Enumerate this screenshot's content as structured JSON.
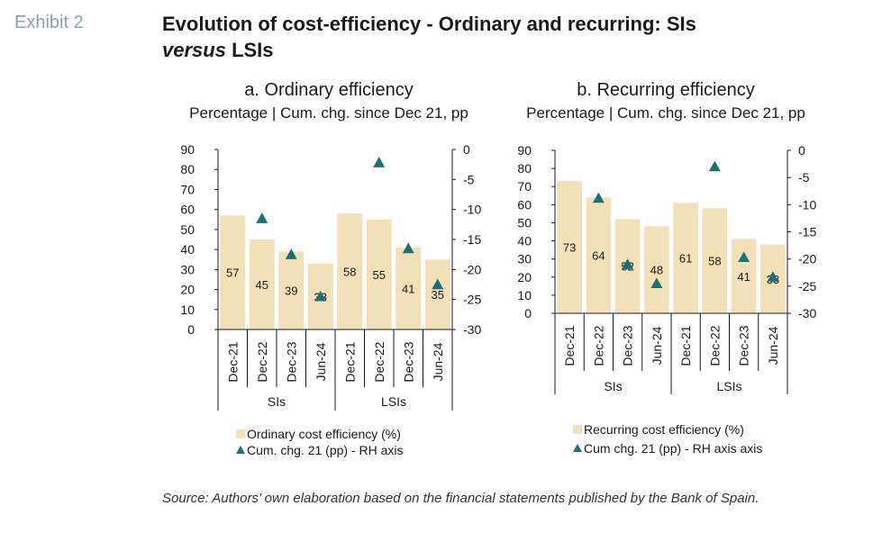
{
  "exhibit_label": "Exhibit 2",
  "title": {
    "line1": "Evolution of cost-efficiency - Ordinary and recurring: SIs",
    "line2_italic": "versus",
    "line2_rest": " LSIs"
  },
  "source": "Source: Authors’ own elaboration based on the financial statements published by the Bank of Spain.",
  "colors": {
    "bar": "#f2e0b9",
    "marker": "#1d6f7a"
  },
  "chart_data": [
    {
      "type": "bar",
      "title": "a. Ordinary efficiency",
      "subtitle": "Percentage | Cum. chg. since Dec 21, pp",
      "categories": [
        "Dec-21",
        "Dec-22",
        "Dec-23",
        "Jun-24",
        "Dec-21",
        "Dec-22",
        "Dec-23",
        "Jun-24"
      ],
      "groups": [
        "SIs",
        "LSIs"
      ],
      "y_left": {
        "min": 0,
        "max": 90,
        "ticks": [
          "0",
          "10",
          "20",
          "30",
          "40",
          "50",
          "60",
          "70",
          "80",
          "90"
        ]
      },
      "y_right": {
        "min": -30,
        "max": 0,
        "ticks": [
          "-30",
          "-25",
          "-20",
          "-15",
          "-10",
          "-5",
          "0"
        ]
      },
      "series": [
        {
          "name": "Ordinary cost efficiency (%)",
          "type": "bar",
          "axis": "left",
          "values": [
            57,
            45,
            39,
            33,
            58,
            55,
            41,
            35
          ],
          "labels": [
            "57",
            "45",
            "39",
            "33",
            "58",
            "55",
            "41",
            "35"
          ]
        },
        {
          "name": "Cum. chg. 21 (pp) - RH axis",
          "type": "marker",
          "axis": "right",
          "values": [
            null,
            -11.5,
            -17.5,
            -24.5,
            null,
            -2.2,
            -16.5,
            -22.5
          ]
        }
      ],
      "legend": [
        "Ordinary cost efficiency (%)",
        "Cum. chg. 21 (pp) - RH axis"
      ]
    },
    {
      "type": "bar",
      "title": "b. Recurring efficiency",
      "subtitle": "Percentage | Cum. chg. since Dec 21, pp",
      "categories": [
        "Dec-21",
        "Dec-22",
        "Dec-23",
        "Jun-24",
        "Dec-21",
        "Dec-22",
        "Dec-23",
        "Jun-24"
      ],
      "groups": [
        "SIs",
        "LSIs"
      ],
      "y_left": {
        "min": 0,
        "max": 90,
        "ticks": [
          "0",
          "10",
          "20",
          "30",
          "40",
          "50",
          "60",
          "70",
          "80",
          "90"
        ]
      },
      "y_right": {
        "min": -30,
        "max": 0,
        "ticks": [
          "-30",
          "-25",
          "-20",
          "-15",
          "-10",
          "-5",
          "0"
        ]
      },
      "series": [
        {
          "name": "Recurring cost efficiency (%)",
          "type": "bar",
          "axis": "left",
          "values": [
            73,
            64,
            52,
            48,
            61,
            58,
            41,
            38
          ],
          "labels": [
            "73",
            "64",
            "52",
            "48",
            "61",
            "58",
            "41",
            "38"
          ]
        },
        {
          "name": "Cum chg. 21 (pp) - RH axis axis",
          "type": "marker",
          "axis": "right",
          "values": [
            null,
            -8.8,
            -21,
            -24.5,
            null,
            -3,
            -19.7,
            -23.3
          ]
        }
      ],
      "legend": [
        "Recurring cost efficiency (%)",
        "Cum chg. 21 (pp) - RH axis axis"
      ]
    }
  ]
}
